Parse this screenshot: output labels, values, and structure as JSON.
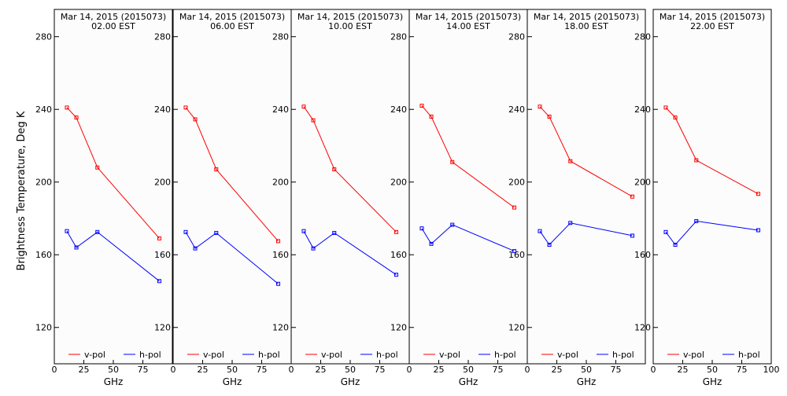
{
  "figure": {
    "ylabel": "Brightness Temperature, Deg K"
  },
  "chart_data": [
    {
      "type": "line",
      "title": "Mar 14, 2015 (2015073)",
      "subtitle": "02.00 EST",
      "xlabel": "GHz",
      "xlim": [
        0,
        100
      ],
      "ylim": [
        100,
        295
      ],
      "xticks": [
        0,
        25,
        50,
        75
      ],
      "yticks": [
        120,
        160,
        200,
        240,
        280
      ],
      "series": [
        {
          "name": "v-pol",
          "color": "#ff0000",
          "x": [
            10.65,
            18.7,
            36.5,
            89
          ],
          "y": [
            241,
            235.5,
            208,
            169
          ]
        },
        {
          "name": "h-pol",
          "color": "#0000ff",
          "x": [
            10.65,
            18.7,
            36.5,
            89
          ],
          "y": [
            173,
            164,
            172.5,
            145.5
          ]
        }
      ],
      "legend": "bottom"
    },
    {
      "type": "line",
      "title": "Mar 14, 2015 (2015073)",
      "subtitle": "06.00 EST",
      "xlabel": "GHz",
      "xlim": [
        0,
        100
      ],
      "ylim": [
        100,
        295
      ],
      "xticks": [
        0,
        25,
        50,
        75
      ],
      "yticks": [
        120,
        160,
        200,
        240,
        280
      ],
      "series": [
        {
          "name": "v-pol",
          "color": "#ff0000",
          "x": [
            10.65,
            18.7,
            36.5,
            89
          ],
          "y": [
            241,
            234.5,
            207,
            167.5
          ]
        },
        {
          "name": "h-pol",
          "color": "#0000ff",
          "x": [
            10.65,
            18.7,
            36.5,
            89
          ],
          "y": [
            172.5,
            163.5,
            172,
            144
          ]
        }
      ],
      "legend": "bottom"
    },
    {
      "type": "line",
      "title": "Mar 14, 2015 (2015073)",
      "subtitle": "10.00 EST",
      "xlabel": "GHz",
      "xlim": [
        0,
        100
      ],
      "ylim": [
        100,
        295
      ],
      "xticks": [
        0,
        25,
        50,
        75
      ],
      "yticks": [
        120,
        160,
        200,
        240,
        280
      ],
      "series": [
        {
          "name": "v-pol",
          "color": "#ff0000",
          "x": [
            10.65,
            18.7,
            36.5,
            89
          ],
          "y": [
            241.5,
            234,
            207,
            172.5
          ]
        },
        {
          "name": "h-pol",
          "color": "#0000ff",
          "x": [
            10.65,
            18.7,
            36.5,
            89
          ],
          "y": [
            173,
            163.5,
            172,
            149
          ]
        }
      ],
      "legend": "bottom"
    },
    {
      "type": "line",
      "title": "Mar 14, 2015 (2015073)",
      "subtitle": "14.00 EST",
      "xlabel": "GHz",
      "xlim": [
        0,
        100
      ],
      "ylim": [
        100,
        295
      ],
      "xticks": [
        0,
        25,
        50,
        75
      ],
      "yticks": [
        120,
        160,
        200,
        240,
        280
      ],
      "series": [
        {
          "name": "v-pol",
          "color": "#ff0000",
          "x": [
            10.65,
            18.7,
            36.5,
            89
          ],
          "y": [
            242,
            236,
            211,
            186
          ]
        },
        {
          "name": "h-pol",
          "color": "#0000ff",
          "x": [
            10.65,
            18.7,
            36.5,
            89
          ],
          "y": [
            174.5,
            166,
            176.5,
            162
          ]
        }
      ],
      "legend": "bottom"
    },
    {
      "type": "line",
      "title": "Mar 14, 2015 (2015073)",
      "subtitle": "18.00 EST",
      "xlabel": "GHz",
      "xlim": [
        0,
        100
      ],
      "ylim": [
        100,
        295
      ],
      "xticks": [
        0,
        25,
        50,
        75
      ],
      "yticks": [
        120,
        160,
        200,
        240,
        280
      ],
      "series": [
        {
          "name": "v-pol",
          "color": "#ff0000",
          "x": [
            10.65,
            18.7,
            36.5,
            89
          ],
          "y": [
            241.5,
            236,
            211.5,
            192
          ]
        },
        {
          "name": "h-pol",
          "color": "#0000ff",
          "x": [
            10.65,
            18.7,
            36.5,
            89
          ],
          "y": [
            173,
            165.5,
            177.5,
            170.5
          ]
        }
      ],
      "legend": "bottom"
    },
    {
      "type": "line",
      "title": "Mar 14, 2015 (2015073)",
      "subtitle": "22.00 EST",
      "xlabel": "GHz",
      "xlim": [
        0,
        100
      ],
      "ylim": [
        100,
        295
      ],
      "xticks": [
        0,
        25,
        50,
        75
      ],
      "yticks": [
        120,
        160,
        200,
        240,
        280
      ],
      "series": [
        {
          "name": "v-pol",
          "color": "#ff0000",
          "x": [
            10.65,
            18.7,
            36.5,
            89
          ],
          "y": [
            241,
            235.5,
            212,
            193.5
          ]
        },
        {
          "name": "h-pol",
          "color": "#0000ff",
          "x": [
            10.65,
            18.7,
            36.5,
            89
          ],
          "y": [
            172.5,
            165.5,
            178.5,
            173.5
          ]
        }
      ],
      "legend": "bottom"
    }
  ]
}
